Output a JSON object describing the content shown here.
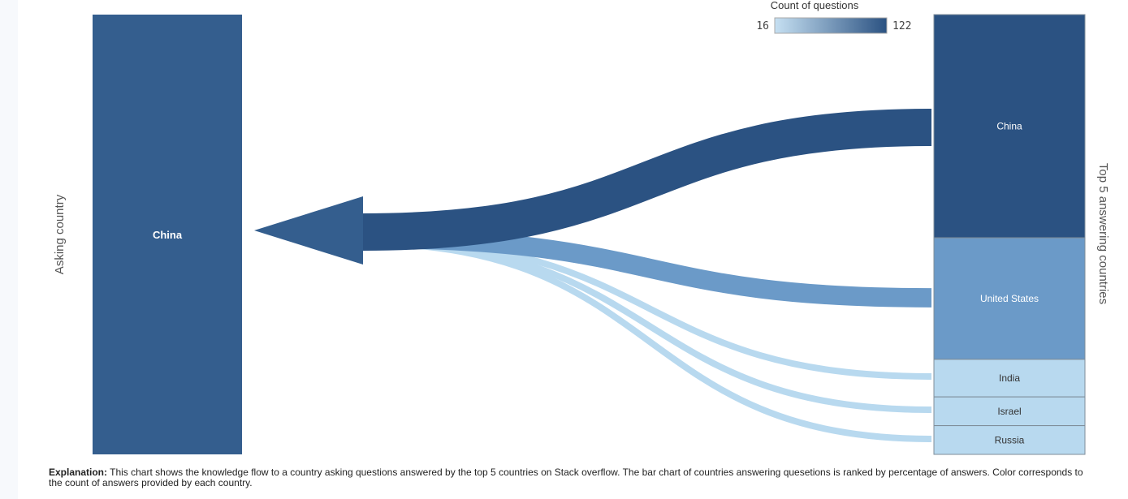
{
  "chart_data": {
    "type": "sankey",
    "legend": {
      "title": "Count of questions",
      "min_label": "16",
      "max_label": "122",
      "min": 16,
      "max": 122,
      "color_low": "#c6e0f2",
      "color_high": "#2b5282"
    },
    "left_axis_label": "Asking country",
    "right_axis_label": "Top 5 answering countries",
    "source": {
      "name": "China",
      "color": "#345e8e"
    },
    "targets": [
      {
        "name": "China",
        "count": 122,
        "share": 0.505,
        "color": "#2b5282"
      },
      {
        "name": "United States",
        "count": 60,
        "share": 0.275,
        "color": "#6b9ac8"
      },
      {
        "name": "India",
        "count": 16,
        "share": 0.085,
        "color": "#b8d9ef"
      },
      {
        "name": "Israel",
        "count": 16,
        "share": 0.065,
        "color": "#b8d9ef"
      },
      {
        "name": "Russia",
        "count": 16,
        "share": 0.065,
        "color": "#b8d9ef"
      }
    ]
  },
  "explanation": {
    "lead": "Explanation:",
    "text": " This chart shows the knowledge flow to a country asking questions answered by the top 5 countries on Stack overflow. The bar chart of countries answering quesetions is ranked by percentage of answers.  Color corresponds to the count of answers provided by each country."
  }
}
